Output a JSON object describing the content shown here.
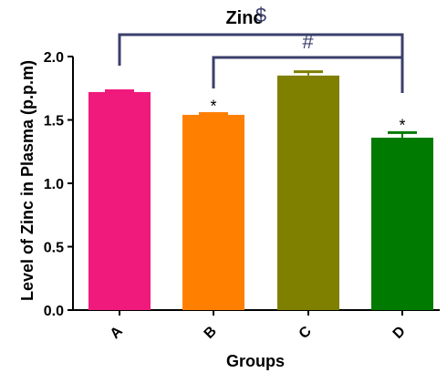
{
  "chart_data": {
    "type": "bar",
    "title": "Zinc",
    "xlabel": "Groups",
    "ylabel": "Level of Zinc in Plasma (p.p.m)",
    "ylim": [
      0,
      2.0
    ],
    "yticks": [
      "0.0",
      "0.5",
      "1.0",
      "1.5",
      "2.0"
    ],
    "categories": [
      "A",
      "B",
      "C",
      "D"
    ],
    "values": [
      1.72,
      1.54,
      1.85,
      1.36
    ],
    "errors": [
      0.01,
      0.01,
      0.03,
      0.04
    ],
    "colors": [
      "#f0197c",
      "#ff7f00",
      "#7f7f00",
      "#007a00"
    ],
    "grid": false,
    "annotations": {
      "brackets": [
        {
          "symbol": "$",
          "from": "A",
          "to": "D",
          "color": "#3b3f6b"
        },
        {
          "symbol": "#",
          "from": "B",
          "to": "D",
          "color": "#3b3f6b"
        }
      ],
      "stars": [
        {
          "category": "B",
          "symbol": "*"
        },
        {
          "category": "D",
          "symbol": "*"
        }
      ]
    }
  }
}
